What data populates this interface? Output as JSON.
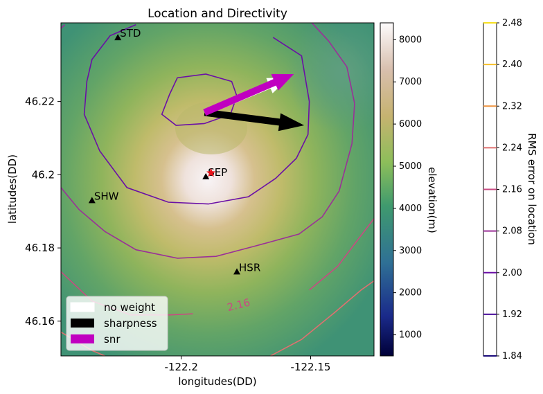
{
  "chart_data": {
    "type": "map-contour",
    "title": "Location and Directivity",
    "xlabel": "longitudes(DD)",
    "ylabel": "latitudes(DD)",
    "xlim": [
      -122.2465,
      -122.1255
    ],
    "ylim": [
      46.1505,
      46.2415
    ],
    "x_ticks": [
      {
        "value": -122.2,
        "label": "-122.2"
      },
      {
        "value": -122.15,
        "label": "-122.15"
      }
    ],
    "y_ticks": [
      {
        "value": 46.16,
        "label": "46.16"
      },
      {
        "value": 46.18,
        "label": "46.18"
      },
      {
        "value": 46.2,
        "label": "46.2"
      },
      {
        "value": 46.22,
        "label": "46.22"
      }
    ],
    "stations": [
      {
        "name": "STD",
        "lon": -122.2245,
        "lat": 46.2375
      },
      {
        "name": "SEP",
        "lon": -122.1905,
        "lat": 46.1995
      },
      {
        "name": "SHW",
        "lon": -122.2345,
        "lat": 46.193
      },
      {
        "name": "HSR",
        "lon": -122.1785,
        "lat": 46.1735
      }
    ],
    "epicenter": {
      "lon": -122.1885,
      "lat": 46.2005
    },
    "arrows": [
      {
        "name": "no weight",
        "color": "#ffffff",
        "from": [
          -122.191,
          46.217
        ],
        "to": [
          -122.1585,
          46.2265
        ]
      },
      {
        "name": "sharpness",
        "color": "#000000",
        "from": [
          -122.191,
          46.217
        ],
        "to": [
          -122.1525,
          46.2135
        ]
      },
      {
        "name": "snr",
        "color": "#c000c0",
        "from": [
          -122.191,
          46.217
        ],
        "to": [
          -122.1565,
          46.2275
        ]
      }
    ],
    "legend": {
      "position": "lower-left",
      "entries": [
        {
          "label": "no weight",
          "color": "#ffffff"
        },
        {
          "label": "sharpness",
          "color": "#000000"
        },
        {
          "label": "snr",
          "color": "#c000c0"
        }
      ]
    },
    "contours": [
      {
        "level": 2.0,
        "color": "#6a0fa6",
        "points": [
          [
            -122.191,
            46.214
          ],
          [
            -122.181,
            46.2165
          ],
          [
            -122.1785,
            46.2215
          ],
          [
            -122.1805,
            46.2255
          ],
          [
            -122.1905,
            46.2275
          ],
          [
            -122.2015,
            46.2265
          ],
          [
            -122.2045,
            46.222
          ],
          [
            -122.2075,
            46.2165
          ],
          [
            -122.202,
            46.2135
          ],
          [
            -122.191,
            46.214
          ]
        ]
      },
      {
        "level": 2.0,
        "color": "#6a0fa6",
        "points": [
          [
            -122.2175,
            46.241
          ],
          [
            -122.2275,
            46.238
          ],
          [
            -122.2345,
            46.2315
          ],
          [
            -122.2365,
            46.2255
          ],
          [
            -122.2375,
            46.2165
          ],
          [
            -122.2315,
            46.2065
          ],
          [
            -122.221,
            46.1965
          ],
          [
            -122.205,
            46.1925
          ],
          [
            -122.1895,
            46.192
          ],
          [
            -122.174,
            46.194
          ],
          [
            -122.1635,
            46.199
          ],
          [
            -122.1555,
            46.2045
          ],
          [
            -122.151,
            46.211
          ],
          [
            -122.1505,
            46.22
          ],
          [
            -122.1535,
            46.2325
          ],
          [
            -122.1645,
            46.2375
          ]
        ]
      },
      {
        "level": 2.08,
        "color": "#9a3098",
        "points": [
          [
            -122.2465,
            46.24
          ],
          [
            -122.245,
            46.241
          ]
        ]
      },
      {
        "level": 2.08,
        "color": "#9a3098",
        "points": [
          [
            -122.2465,
            46.1965
          ],
          [
            -122.2395,
            46.1905
          ],
          [
            -122.2295,
            46.1845
          ],
          [
            -122.2175,
            46.1795
          ],
          [
            -122.2015,
            46.1772
          ],
          [
            -122.1865,
            46.1777
          ],
          [
            -122.1715,
            46.1805
          ],
          [
            -122.1545,
            46.1838
          ],
          [
            -122.1455,
            46.1885
          ],
          [
            -122.139,
            46.1955
          ],
          [
            -122.134,
            46.2085
          ],
          [
            -122.133,
            46.2195
          ],
          [
            -122.136,
            46.2295
          ],
          [
            -122.143,
            46.2365
          ],
          [
            -122.1495,
            46.2415
          ]
        ]
      },
      {
        "level": 2.16,
        "color": "#c94a82",
        "points": [
          [
            -122.2465,
            46.1735
          ],
          [
            -122.2345,
            46.1655
          ],
          [
            -122.2195,
            46.1617
          ],
          [
            -122.2045,
            46.1617
          ],
          [
            -122.1955,
            46.162
          ]
        ]
      },
      {
        "level": 2.16,
        "color": "#c94a82",
        "points": [
          [
            -122.1505,
            46.1685
          ],
          [
            -122.1395,
            46.175
          ],
          [
            -122.1315,
            46.1825
          ],
          [
            -122.1255,
            46.188
          ]
        ]
      },
      {
        "level": 2.24,
        "color": "#e07070",
        "points": [
          [
            -122.2465,
            46.157
          ],
          [
            -122.2345,
            46.152
          ],
          [
            -122.2295,
            46.1505
          ]
        ]
      },
      {
        "level": 2.24,
        "color": "#e07070",
        "points": [
          [
            -122.1655,
            46.1505
          ],
          [
            -122.1535,
            46.155
          ],
          [
            -122.1405,
            46.1625
          ],
          [
            -122.1305,
            46.1685
          ],
          [
            -122.1255,
            46.171
          ]
        ]
      }
    ],
    "contour_label": {
      "text": "2.16",
      "lon": -122.1775,
      "lat": 46.1635,
      "color": "#c94a82"
    },
    "elevation_colorbar": {
      "label": "elevation(m)",
      "range": [
        500,
        8400
      ],
      "ticks": [
        1000,
        2000,
        3000,
        4000,
        5000,
        6000,
        7000,
        8000
      ]
    },
    "rms_colorbar": {
      "label": "RMS error on location",
      "range": [
        1.84,
        2.48
      ],
      "levels": [
        {
          "value": 1.84,
          "color": "#1a0a7a"
        },
        {
          "value": 1.92,
          "color": "#4a0e9c"
        },
        {
          "value": 2.0,
          "color": "#6a0fa6"
        },
        {
          "value": 2.08,
          "color": "#9a3098"
        },
        {
          "value": 2.16,
          "color": "#c94a82"
        },
        {
          "value": 2.24,
          "color": "#e07070"
        },
        {
          "value": 2.32,
          "color": "#ee9440"
        },
        {
          "value": 2.4,
          "color": "#f7c02a"
        },
        {
          "value": 2.48,
          "color": "#f7e020"
        }
      ]
    }
  }
}
